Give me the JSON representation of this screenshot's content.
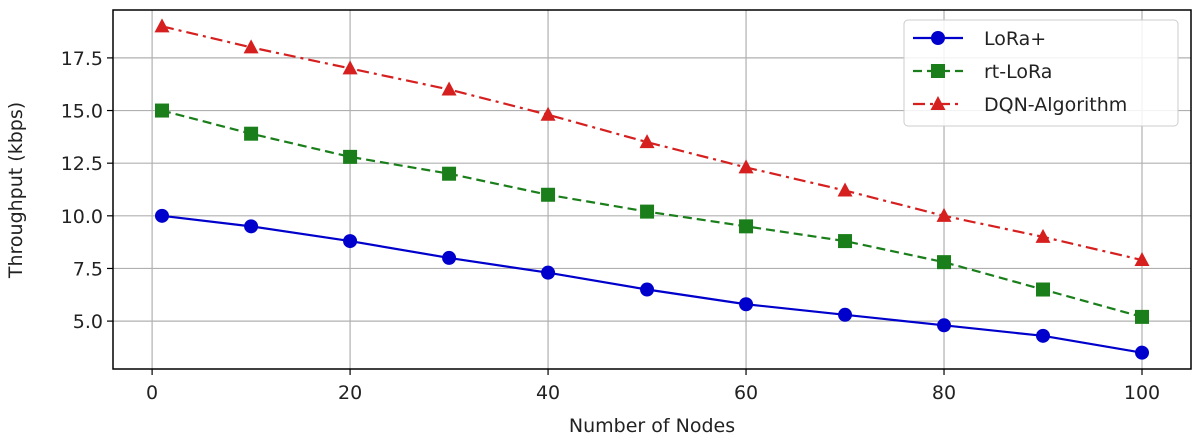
{
  "chart_data": {
    "type": "line",
    "title": "",
    "xlabel": "Number of Nodes",
    "ylabel": "Throughput (kbps)",
    "xlim": [
      -3.95,
      104.95
    ],
    "ylim": [
      2.725,
      19.775
    ],
    "xticks": [
      0,
      20,
      40,
      60,
      80,
      100
    ],
    "yticks": [
      5.0,
      7.5,
      10.0,
      12.5,
      15.0,
      17.5
    ],
    "xtick_labels": [
      "0",
      "20",
      "40",
      "60",
      "80",
      "100"
    ],
    "ytick_labels": [
      "5.0",
      "7.5",
      "10.0",
      "12.5",
      "15.0",
      "17.5"
    ],
    "grid": true,
    "legend_position": "top-right",
    "x": [
      1,
      10,
      20,
      30,
      40,
      50,
      60,
      70,
      80,
      90,
      100
    ],
    "series": [
      {
        "name": "LoRa+",
        "color": "#0000cc",
        "marker": "circle",
        "linestyle": "solid",
        "values": [
          10.0,
          9.5,
          8.8,
          8.0,
          7.3,
          6.5,
          5.8,
          5.3,
          4.8,
          4.3,
          3.5
        ]
      },
      {
        "name": "rt-LoRa",
        "color": "#1a7f1a",
        "marker": "square",
        "linestyle": "dashed",
        "values": [
          15.0,
          13.9,
          12.8,
          12.0,
          11.0,
          10.2,
          9.5,
          8.8,
          7.8,
          6.5,
          5.2
        ]
      },
      {
        "name": "DQN-Algorithm",
        "color": "#d62020",
        "marker": "triangle",
        "linestyle": "dashdot",
        "values": [
          19.0,
          18.0,
          17.0,
          16.0,
          14.8,
          13.5,
          12.3,
          11.2,
          10.0,
          9.0,
          7.9
        ]
      }
    ]
  }
}
